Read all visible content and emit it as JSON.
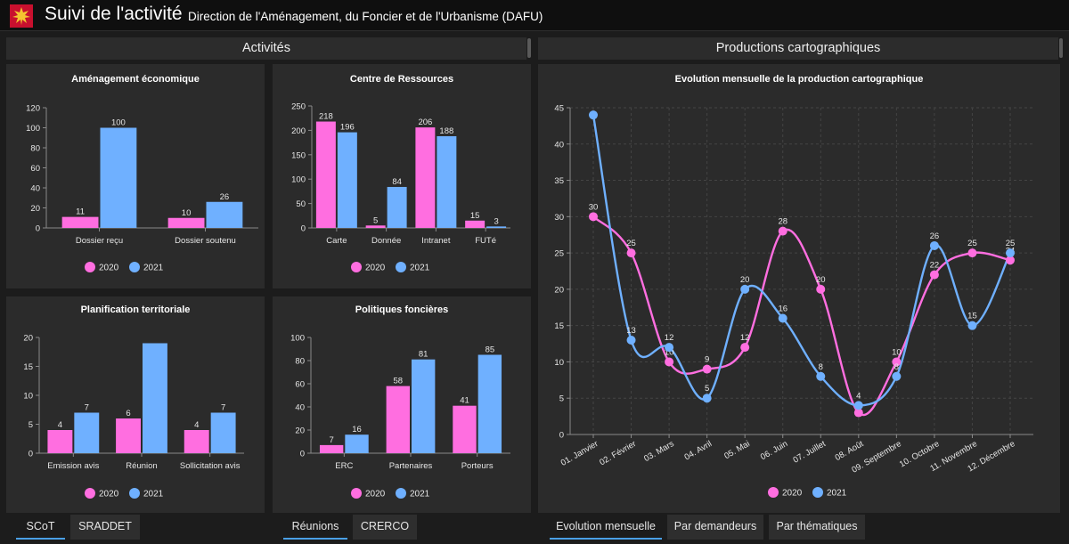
{
  "header": {
    "title": "Suivi de l'activité",
    "subtitle": "Direction de l'Aménagement, du Foncier et de l'Urbanisme (DAFU)",
    "logo_icon": "region-cross-logo"
  },
  "sections": {
    "left": "Activités",
    "right": "Productions cartographiques"
  },
  "colors": {
    "s2020": "#ff6ee0",
    "s2021": "#6fb0ff",
    "grid": "#444444",
    "axis": "#8a8a8a",
    "text": "#e6e6e6"
  },
  "legend": {
    "s2020": "2020",
    "s2021": "2021"
  },
  "tabs": {
    "scot": [
      "SCoT",
      "SRADDET"
    ],
    "reunions": [
      "Réunions",
      "CRERCO"
    ],
    "evolution": [
      "Evolution mensuelle",
      "Par demandeurs",
      "Par thématiques"
    ]
  },
  "chart_data": [
    {
      "id": "amenagement",
      "type": "bar",
      "title": "Aménagement économique",
      "categories": [
        "Dossier reçu",
        "Dossier soutenu"
      ],
      "series": [
        {
          "name": "2020",
          "values": [
            11,
            10
          ]
        },
        {
          "name": "2021",
          "values": [
            100,
            26
          ]
        }
      ],
      "ylim": [
        0,
        120
      ],
      "yticks": [
        0,
        20,
        40,
        60,
        80,
        100,
        120
      ],
      "data_labels": [
        [
          true,
          true
        ],
        [
          true,
          true
        ]
      ],
      "legend_position": "bottom"
    },
    {
      "id": "centre",
      "type": "bar",
      "title": "Centre de Ressources",
      "categories": [
        "Carte",
        "Donnée",
        "Intranet",
        "FUTé"
      ],
      "series": [
        {
          "name": "2020",
          "values": [
            218,
            5,
            206,
            15
          ]
        },
        {
          "name": "2021",
          "values": [
            196,
            84,
            188,
            3
          ]
        }
      ],
      "ylim": [
        0,
        250
      ],
      "yticks": [
        0,
        50,
        100,
        150,
        200,
        250
      ],
      "data_labels": [
        [
          true,
          true,
          true,
          true
        ],
        [
          true,
          true,
          true,
          true
        ]
      ],
      "legend_position": "bottom"
    },
    {
      "id": "planification",
      "type": "bar",
      "title": "Planification territoriale",
      "categories": [
        "Emission avis",
        "Réunion",
        "Sollicitation avis"
      ],
      "series": [
        {
          "name": "2020",
          "values": [
            4,
            6,
            4
          ]
        },
        {
          "name": "2021",
          "values": [
            7,
            19,
            7
          ]
        }
      ],
      "ylim": [
        0,
        20
      ],
      "yticks": [
        0,
        5,
        10,
        15,
        20
      ],
      "data_labels": [
        [
          true,
          true,
          true
        ],
        [
          true,
          false,
          true
        ]
      ],
      "legend_position": "bottom"
    },
    {
      "id": "politiques",
      "type": "bar",
      "title": "Politiques foncières",
      "categories": [
        "ERC",
        "Partenaires",
        "Porteurs"
      ],
      "series": [
        {
          "name": "2020",
          "values": [
            7,
            58,
            41
          ]
        },
        {
          "name": "2021",
          "values": [
            16,
            81,
            85
          ]
        }
      ],
      "ylim": [
        0,
        100
      ],
      "yticks": [
        0,
        20,
        40,
        60,
        80,
        100
      ],
      "data_labels": [
        [
          true,
          true,
          true
        ],
        [
          true,
          true,
          true
        ]
      ],
      "legend_position": "bottom"
    },
    {
      "id": "evolution",
      "type": "line",
      "title": "Evolution mensuelle de la production cartographique",
      "categories": [
        "01. Janvier",
        "02. Février",
        "03. Mars",
        "04. Avril",
        "05. Mai",
        "06. Juin",
        "07. Juillet",
        "08. Août",
        "09. Septembre",
        "10. Octobre",
        "11. Novembre",
        "12. Décembre"
      ],
      "series": [
        {
          "name": "2020",
          "values": [
            30,
            25,
            10,
            9,
            12,
            28,
            20,
            3,
            10,
            22,
            25,
            24
          ]
        },
        {
          "name": "2021",
          "values": [
            44,
            13,
            12,
            5,
            20,
            16,
            8,
            4,
            8,
            26,
            15,
            25
          ]
        }
      ],
      "data_labels": [
        [
          true,
          true,
          true,
          true,
          true,
          true,
          true,
          false,
          true,
          true,
          true,
          true
        ],
        [
          false,
          true,
          true,
          true,
          true,
          true,
          true,
          true,
          true,
          true,
          true,
          true
        ]
      ],
      "ylim": [
        0,
        45
      ],
      "yticks": [
        0,
        5,
        10,
        15,
        20,
        25,
        30,
        35,
        40,
        45
      ],
      "grid": true,
      "legend_position": "bottom"
    }
  ]
}
